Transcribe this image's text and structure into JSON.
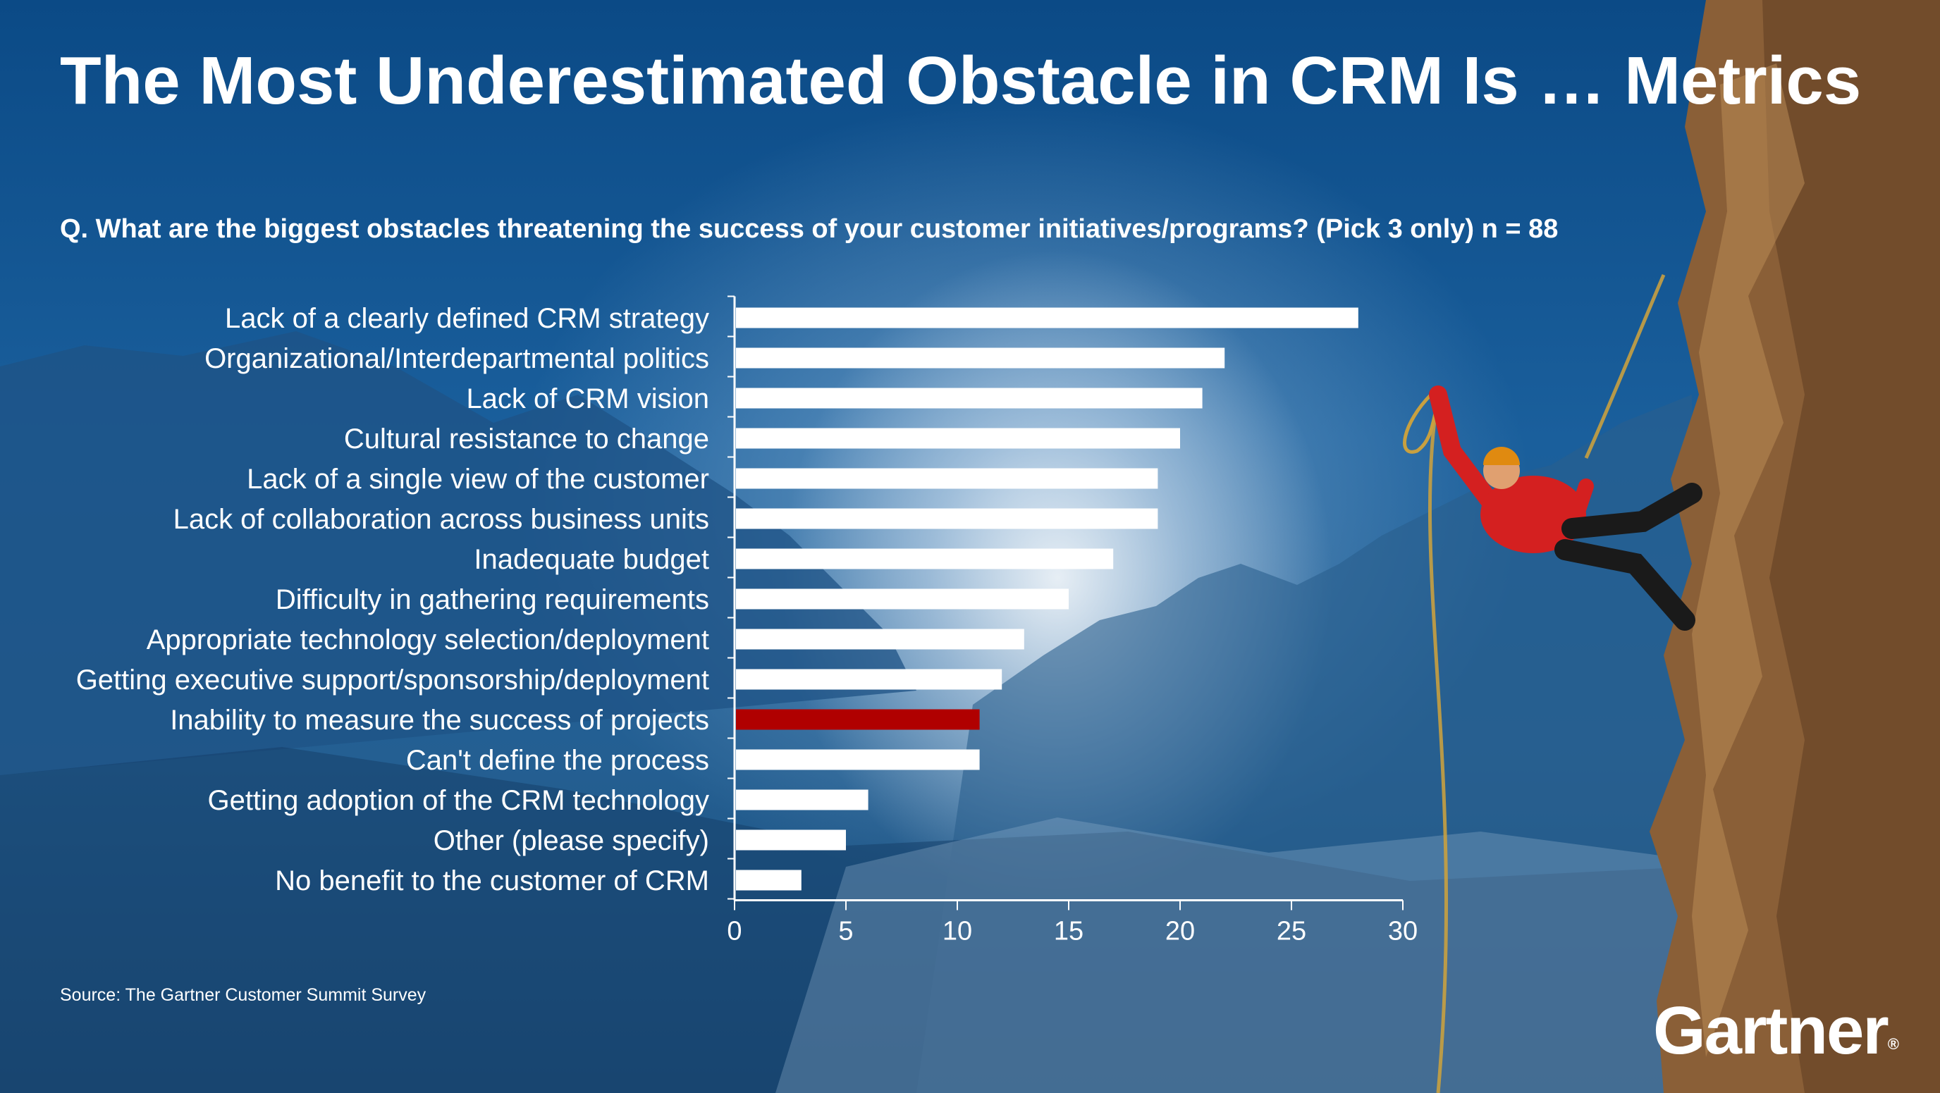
{
  "slide": {
    "title": "The Most Underestimated Obstacle in CRM Is … Metrics",
    "question": "Q. What are the biggest obstacles threatening the success of your customer initiatives/programs? (Pick 3 only) n = 88",
    "source": "Source: The Gartner Customer Summit Survey",
    "logo": "Gartner",
    "logo_mark": "®"
  },
  "colors": {
    "bar": "#ffffff",
    "highlight": "#b00000",
    "text": "#ffffff"
  },
  "chart_data": {
    "type": "bar",
    "orientation": "horizontal",
    "categories": [
      "Lack of a clearly defined CRM strategy",
      "Organizational/Interdepartmental politics",
      "Lack of CRM vision",
      "Cultural resistance to change",
      "Lack of a single view of the customer",
      "Lack of collaboration across business units",
      "Inadequate budget",
      "Difficulty in gathering requirements",
      "Appropriate technology selection/deployment",
      "Getting executive support/sponsorship/deployment",
      "Inability to measure the success of projects",
      "Can't define the process",
      "Getting adoption of the CRM technology",
      "Other (please specify)",
      "No benefit to the customer of CRM"
    ],
    "values": [
      28,
      22,
      21,
      20,
      19,
      19,
      17,
      15,
      13,
      12,
      11,
      11,
      6,
      5,
      3
    ],
    "highlight": "Inability to measure the success of projects",
    "xlim": [
      0,
      30
    ],
    "xticks": [
      "0",
      "5",
      "10",
      "15",
      "20",
      "25",
      "30"
    ],
    "grid": false,
    "legend": "none"
  }
}
